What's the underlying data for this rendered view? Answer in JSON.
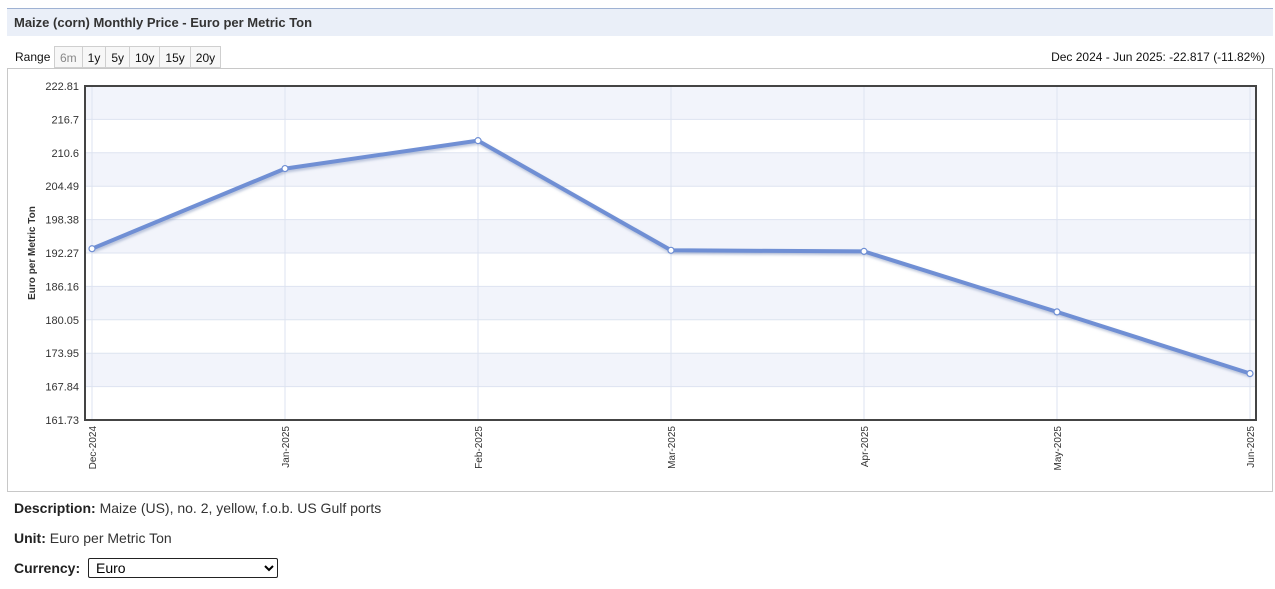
{
  "page_title": "Maize (corn) Monthly Price - Euro per Metric Ton",
  "range": {
    "label": "Range",
    "buttons": [
      {
        "label": "6m",
        "disabled": true
      },
      {
        "label": "1y",
        "disabled": false
      },
      {
        "label": "5y",
        "disabled": false
      },
      {
        "label": "10y",
        "disabled": false
      },
      {
        "label": "15y",
        "disabled": false
      },
      {
        "label": "20y",
        "disabled": false
      }
    ],
    "change_text": "Dec 2024 - Jun 2025: -22.817 (-11.82%)"
  },
  "chart_data": {
    "type": "line",
    "title": "",
    "xlabel": "",
    "ylabel": "Euro per Metric Ton",
    "categories": [
      "Dec-2024",
      "Jan-2025",
      "Feb-2025",
      "Mar-2025",
      "Apr-2025",
      "May-2025",
      "Jun-2025"
    ],
    "series": [
      {
        "values": [
          193.05,
          207.71,
          212.82,
          192.76,
          192.57,
          181.5,
          170.23
        ]
      }
    ],
    "yticks": [
      "222.81",
      "216.7",
      "210.6",
      "204.49",
      "198.38",
      "192.27",
      "186.16",
      "180.05",
      "173.95",
      "167.84",
      "161.73"
    ],
    "ylim": [
      161.73,
      222.81
    ],
    "grid": true,
    "line_color": "#6f8fd4",
    "band_color": "#f2f4fb"
  },
  "description": {
    "label": "Description:",
    "value": "Maize (US), no. 2, yellow, f.o.b. US Gulf ports"
  },
  "unit": {
    "label": "Unit:",
    "value": "Euro per Metric Ton"
  },
  "currency": {
    "label": "Currency:",
    "selected": "Euro"
  }
}
